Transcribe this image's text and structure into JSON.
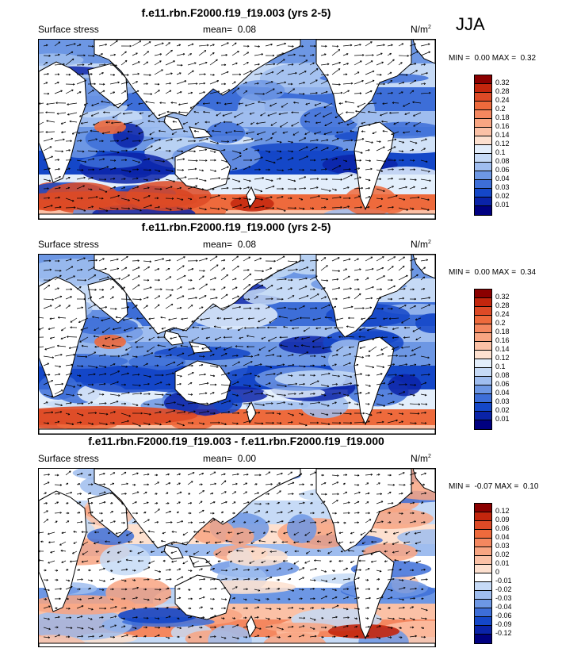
{
  "season": "JJA",
  "panels": [
    {
      "title": "f.e11.rbn.F2000.f19_f19.003 (yrs 2-5)",
      "left_label": "Surface stress",
      "mean_label": "mean=",
      "mean_value": "0.08",
      "units": "N/m",
      "units_exp": "2",
      "min_label": "MIN =",
      "min_value": "0.00",
      "max_label": "MAX =",
      "max_value": "0.32",
      "colorbar": {
        "labels": [
          "0.32",
          "0.28",
          "0.24",
          "0.2",
          "0.18",
          "0.16",
          "0.14",
          "0.12",
          "0.1",
          "0.08",
          "0.06",
          "0.04",
          "0.03",
          "0.02",
          "0.01"
        ],
        "colors": [
          "#8b0000",
          "#c3260d",
          "#dd4a26",
          "#ee6a3c",
          "#f4875f",
          "#f8a582",
          "#fbc1a6",
          "#fde0cf",
          "#e3eefb",
          "#c6daf6",
          "#9fbdef",
          "#6d97e4",
          "#3d6ed8",
          "#1447c8",
          "#0a23a8",
          "#000080"
        ]
      }
    },
    {
      "title": "f.e11.rbn.F2000.f19_f19.000 (yrs 2-5)",
      "left_label": "Surface stress",
      "mean_label": "mean=",
      "mean_value": "0.08",
      "units": "N/m",
      "units_exp": "2",
      "min_label": "MIN =",
      "min_value": "0.00",
      "max_label": "MAX =",
      "max_value": "0.34",
      "colorbar": {
        "labels": [
          "0.32",
          "0.28",
          "0.24",
          "0.2",
          "0.18",
          "0.16",
          "0.14",
          "0.12",
          "0.1",
          "0.08",
          "0.06",
          "0.04",
          "0.03",
          "0.02",
          "0.01"
        ],
        "colors": [
          "#8b0000",
          "#c3260d",
          "#dd4a26",
          "#ee6a3c",
          "#f4875f",
          "#f8a582",
          "#fbc1a6",
          "#fde0cf",
          "#e3eefb",
          "#c6daf6",
          "#9fbdef",
          "#6d97e4",
          "#3d6ed8",
          "#1447c8",
          "#0a23a8",
          "#000080"
        ]
      }
    },
    {
      "title": "f.e11.rbn.F2000.f19_f19.003 - f.e11.rbn.F2000.f19_f19.000",
      "left_label": "Surface stress",
      "mean_label": "mean=",
      "mean_value": "0.00",
      "units": "N/m",
      "units_exp": "2",
      "min_label": "MIN =",
      "min_value": "-0.07",
      "max_label": "MAX =",
      "max_value": "0.10",
      "colorbar": {
        "labels": [
          "0.12",
          "0.09",
          "0.06",
          "0.04",
          "0.03",
          "0.02",
          "0.01",
          "0",
          "-0.01",
          "-0.02",
          "-0.03",
          "-0.04",
          "-0.06",
          "-0.09",
          "-0.12"
        ],
        "colors": [
          "#8b0000",
          "#c3260d",
          "#dd4a26",
          "#ee6a3c",
          "#f4875f",
          "#f8a582",
          "#fbc1a6",
          "#fde0cf",
          "#ffffff",
          "#c6daf6",
          "#9fbdef",
          "#6d97e4",
          "#3d6ed8",
          "#1447c8",
          "#0a23a8",
          "#000080"
        ]
      }
    }
  ],
  "chart_data": [
    {
      "type": "heatmap",
      "title": "f.e11.rbn.F2000.f19_f19.003 (yrs 2-5)",
      "variable": "Surface stress",
      "units": "N/m2",
      "mean": 0.08,
      "min": 0.0,
      "max": 0.32,
      "contour_levels": [
        0.01,
        0.02,
        0.03,
        0.04,
        0.06,
        0.08,
        0.1,
        0.12,
        0.14,
        0.16,
        0.18,
        0.2,
        0.24,
        0.28,
        0.32
      ]
    },
    {
      "type": "heatmap",
      "title": "f.e11.rbn.F2000.f19_f19.000 (yrs 2-5)",
      "variable": "Surface stress",
      "units": "N/m2",
      "mean": 0.08,
      "min": 0.0,
      "max": 0.34,
      "contour_levels": [
        0.01,
        0.02,
        0.03,
        0.04,
        0.06,
        0.08,
        0.1,
        0.12,
        0.14,
        0.16,
        0.18,
        0.2,
        0.24,
        0.28,
        0.32
      ]
    },
    {
      "type": "heatmap",
      "title": "f.e11.rbn.F2000.f19_f19.003 - f.e11.rbn.F2000.f19_f19.000",
      "variable": "Surface stress",
      "units": "N/m2",
      "mean": 0.0,
      "min": -0.07,
      "max": 0.1,
      "contour_levels": [
        -0.12,
        -0.09,
        -0.06,
        -0.04,
        -0.03,
        -0.02,
        -0.01,
        0,
        0.01,
        0.02,
        0.03,
        0.04,
        0.06,
        0.09,
        0.12
      ]
    }
  ]
}
